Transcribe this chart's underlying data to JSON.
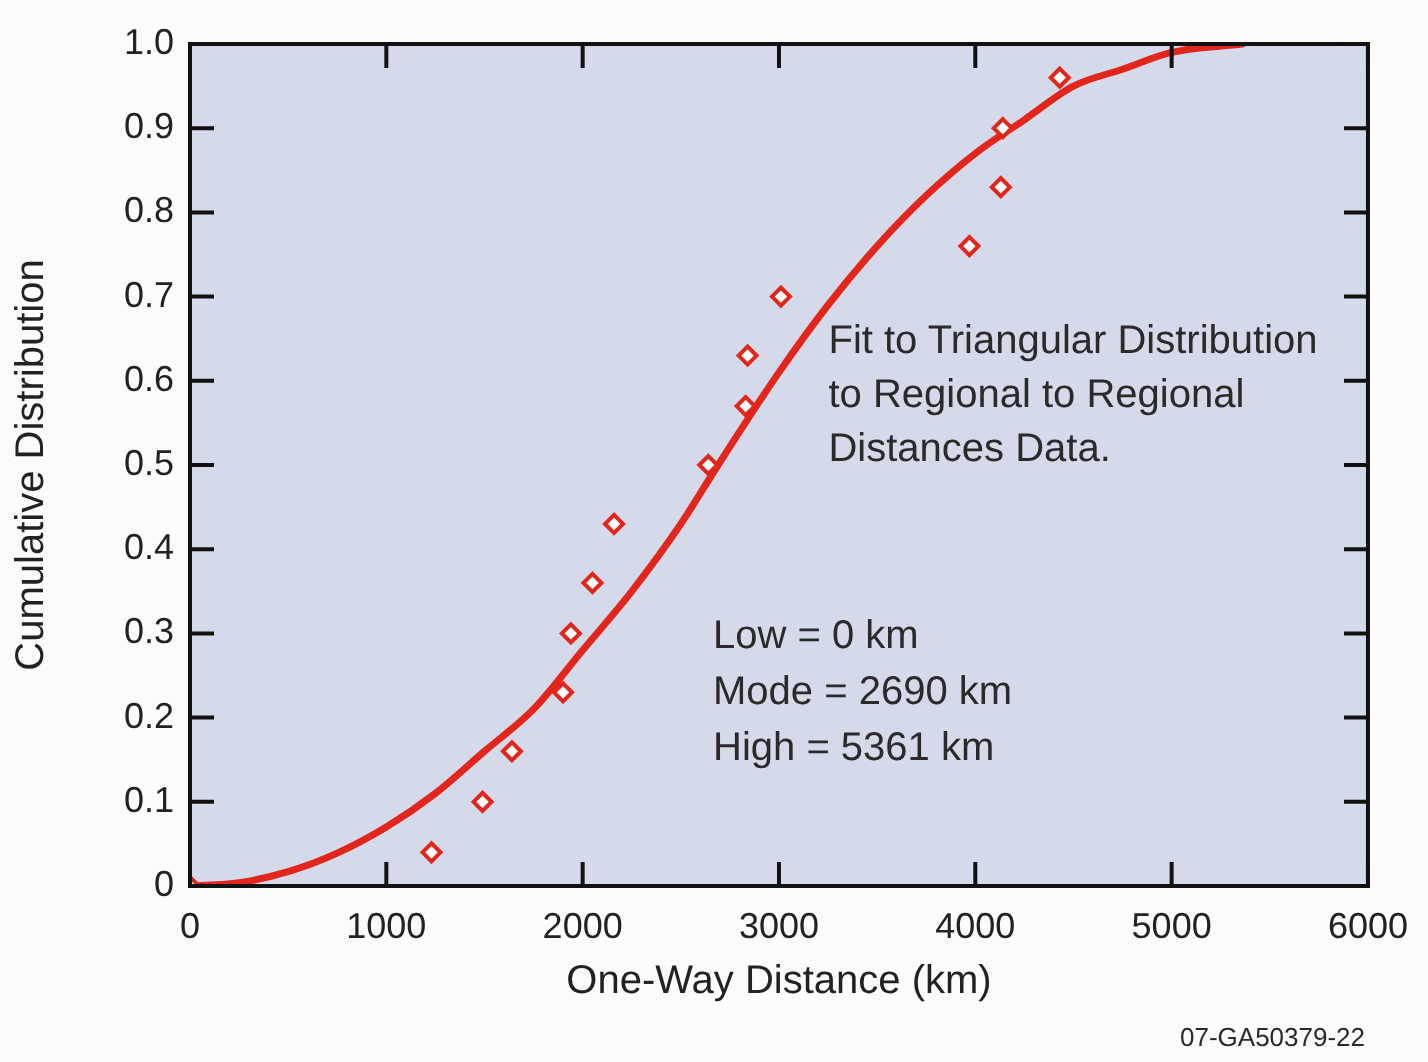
{
  "chart_data": {
    "type": "scatter",
    "xlabel": "One-Way Distance (km)",
    "ylabel": "Cumulative Distribution",
    "xlim": [
      0,
      6000
    ],
    "xticks": [
      0,
      1000,
      2000,
      3000,
      4000,
      5000,
      6000
    ],
    "ylim": [
      0,
      1
    ],
    "yticks": [
      0,
      0.1,
      0.2,
      0.3,
      0.4,
      0.5,
      0.6,
      0.7,
      0.8,
      0.9,
      {
        "value": 1,
        "label": "1.0"
      }
    ],
    "grid": false,
    "legend": false,
    "annotations": [
      "Fit to Triangular Distribution\nto Regional to Regional\nDistances Data.",
      "Low = 0 km\nMode = 2690 km\nHigh = 5361 km",
      "07-GA50379-22"
    ],
    "series": [
      {
        "type": "scatter",
        "color": "#e3261c",
        "marker": "diamond",
        "x": [
          0,
          1230,
          1490,
          1640,
          1900,
          1940,
          2050,
          2160,
          2640,
          2830,
          2840,
          3010,
          3970,
          4130,
          4140,
          4430
        ],
        "values": [
          0,
          0.04,
          0.1,
          0.16,
          0.23,
          0.3,
          0.36,
          0.43,
          0.5,
          0.57,
          0.63,
          0.7,
          0.76,
          0.83,
          0.9,
          0.96
        ]
      },
      {
        "type": "line",
        "color": "#e3261c",
        "marker": "none",
        "line_style": "solid",
        "x": [
          0,
          250,
          500,
          750,
          1000,
          1250,
          1500,
          1750,
          2000,
          2250,
          2500,
          2690,
          3000,
          3250,
          3500,
          3750,
          4000,
          4250,
          4500,
          4750,
          5000,
          5361
        ],
        "values": [
          0,
          0.004,
          0.017,
          0.039,
          0.07,
          0.11,
          0.16,
          0.21,
          0.28,
          0.35,
          0.43,
          0.5,
          0.61,
          0.69,
          0.76,
          0.82,
          0.87,
          0.91,
          0.95,
          0.97,
          0.99,
          1
        ]
      }
    ]
  }
}
